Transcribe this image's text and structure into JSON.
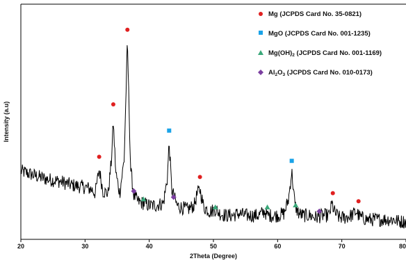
{
  "chart_data": {
    "type": "line",
    "title": "",
    "xlabel": "2Theta (Degree)",
    "ylabel": "Intensity (a.u)",
    "xlim": [
      20,
      80
    ],
    "x_ticks": [
      "20",
      "30",
      "40",
      "50",
      "60",
      "70",
      "80"
    ],
    "grid": false,
    "legend_position": "top-right",
    "line_color": "#000000",
    "pattern": {
      "x": [
        20,
        22,
        24,
        26,
        28,
        30,
        31,
        31.6,
        32.2,
        32.8,
        33.6,
        34.1,
        34.4,
        34.8,
        35.4,
        36.1,
        36.6,
        37.1,
        37.6,
        38.2,
        39.1,
        40,
        41,
        42.2,
        42.8,
        43.1,
        43.5,
        44.3,
        45,
        46,
        47,
        47.5,
        47.9,
        48.5,
        49.5,
        50.3,
        51,
        52,
        53,
        54,
        55,
        56,
        57,
        58,
        58.4,
        59,
        60,
        61,
        61.7,
        62.2,
        62.7,
        63.3,
        64,
        65,
        66,
        67,
        68,
        68.5,
        68.7,
        69,
        69.6,
        70.5,
        71.5,
        72.3,
        72.6,
        73,
        74,
        75,
        76,
        77,
        78,
        79,
        80
      ],
      "y": [
        0.29,
        0.27,
        0.25,
        0.24,
        0.22,
        0.21,
        0.2,
        0.18,
        0.3,
        0.19,
        0.18,
        0.34,
        0.53,
        0.28,
        0.18,
        0.35,
        0.93,
        0.3,
        0.17,
        0.14,
        0.13,
        0.12,
        0.12,
        0.13,
        0.25,
        0.43,
        0.2,
        0.12,
        0.11,
        0.1,
        0.12,
        0.18,
        0.2,
        0.11,
        0.09,
        0.1,
        0.08,
        0.07,
        0.07,
        0.08,
        0.07,
        0.07,
        0.07,
        0.09,
        0.07,
        0.07,
        0.07,
        0.08,
        0.15,
        0.29,
        0.12,
        0.08,
        0.07,
        0.07,
        0.06,
        0.07,
        0.07,
        0.13,
        0.1,
        0.08,
        0.06,
        0.06,
        0.07,
        0.09,
        0.07,
        0.06,
        0.05,
        0.05,
        0.05,
        0.05,
        0.05,
        0.04,
        0.04
      ]
    },
    "series": [
      {
        "name": "Mg (JCPDS Card No. 35-0821)",
        "marker": "circle",
        "color": "#e02020",
        "points": [
          [
            32.2,
            0.34
          ],
          [
            34.4,
            0.6
          ],
          [
            36.6,
            0.97
          ],
          [
            47.9,
            0.24
          ],
          [
            68.6,
            0.16
          ],
          [
            72.6,
            0.12
          ]
        ]
      },
      {
        "name": "MgO (JCPDS Card No. 001-1235)",
        "marker": "square",
        "color": "#1aa3e8",
        "points": [
          [
            43.1,
            0.47
          ],
          [
            62.2,
            0.32
          ]
        ]
      },
      {
        "name": "Mg(OH)2 (JCPDS Card No. 001-1169)",
        "marker": "triangle",
        "color": "#3aa87a",
        "points": [
          [
            39.1,
            0.13
          ],
          [
            50.3,
            0.09
          ],
          [
            58.4,
            0.09
          ],
          [
            62.8,
            0.1
          ]
        ]
      },
      {
        "name": "Al2O3 (JCPDS Card No. 010-0173)",
        "marker": "diamond",
        "color": "#7b3fa0",
        "points": [
          [
            37.6,
            0.17
          ],
          [
            43.8,
            0.14
          ],
          [
            66.5,
            0.07
          ]
        ]
      }
    ],
    "legend": [
      {
        "marker": "circle",
        "color": "#e02020",
        "text": "Mg (JCPDS Card No. 35-0821)"
      },
      {
        "marker": "square",
        "color": "#1aa3e8",
        "text": "MgO (JCPDS Card No. 001-1235)"
      },
      {
        "marker": "triangle",
        "color": "#3aa87a",
        "text_before": "Mg(OH)",
        "text_sub": "2",
        "text_after": " (JCPDS Card No. 001-1169)"
      },
      {
        "marker": "diamond",
        "color": "#7b3fa0",
        "text_before": "Al",
        "text_sub": "2",
        "text_mid": "O",
        "text_sub2": "3",
        "text_after": " (JCPDS Card No. 010-0173)"
      }
    ]
  }
}
